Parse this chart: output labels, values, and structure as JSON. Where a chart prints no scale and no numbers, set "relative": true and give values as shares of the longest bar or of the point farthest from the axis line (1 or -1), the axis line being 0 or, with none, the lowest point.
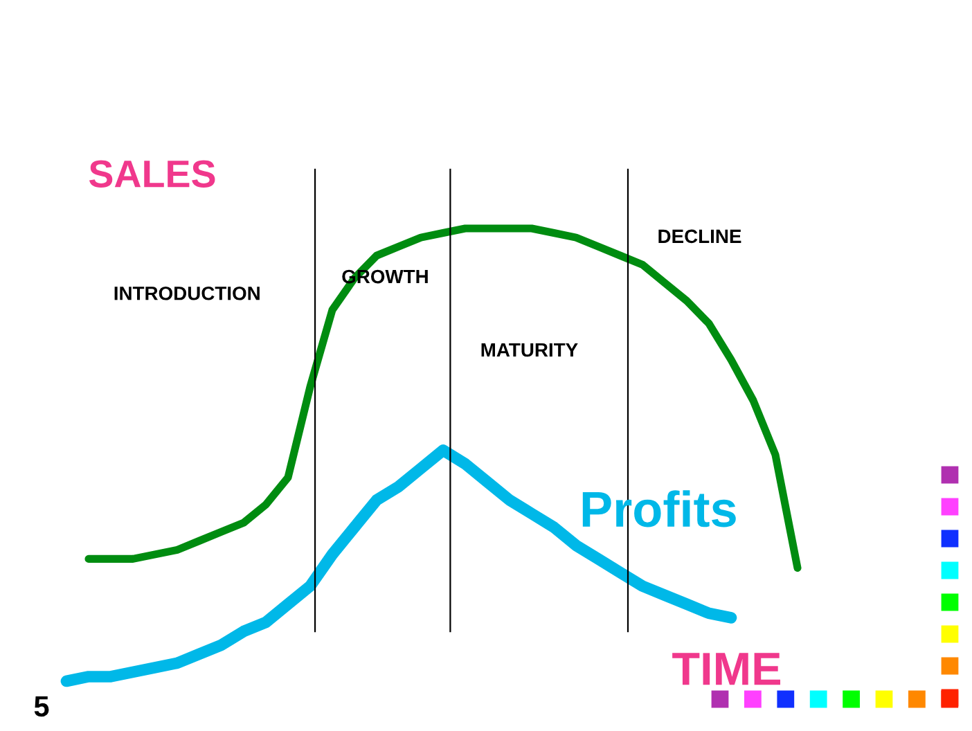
{
  "chart_data": {
    "type": "line",
    "relative": true,
    "xlabel": "TIME",
    "ylabel": "SALES",
    "categories": [
      null,
      null,
      null,
      null,
      null,
      null,
      null,
      null,
      null,
      null,
      null,
      null,
      null,
      null,
      null,
      null,
      null,
      null,
      null,
      null,
      null,
      null,
      null,
      null,
      null,
      null,
      null,
      null,
      null,
      null,
      null,
      null,
      null,
      null
    ],
    "series": [
      {
        "color": "#008c10",
        "values": [
          null,
          0.27,
          0.27,
          0.27,
          0.28,
          0.29,
          0.31,
          0.33,
          0.35,
          0.39,
          0.45,
          0.65,
          0.82,
          0.89,
          0.94,
          0.96,
          0.98,
          0.99,
          1.0,
          1.0,
          1.0,
          1.0,
          0.99,
          0.98,
          0.96,
          0.94,
          0.92,
          0.88,
          0.84,
          0.79,
          0.71,
          0.62,
          0.5,
          0.25
        ]
      },
      {
        "name": "Profits",
        "color": "#00b8e8",
        "values": [
          0,
          0.01,
          0.01,
          0.02,
          0.03,
          0.04,
          0.06,
          0.08,
          0.11,
          0.13,
          0.17,
          0.21,
          0.28,
          0.34,
          0.4,
          0.43,
          0.47,
          0.51,
          0.48,
          0.44,
          0.4,
          0.37,
          0.34,
          0.3,
          0.27,
          0.24,
          0.21,
          0.19,
          0.17,
          0.15,
          0.14,
          null,
          null,
          null
        ]
      }
    ],
    "annotations": [
      "INTRODUCTION",
      "GROWTH",
      "MATURITY",
      "DECLINE",
      "5"
    ],
    "legend": false,
    "marker": "none",
    "line_style": "solid"
  }
}
